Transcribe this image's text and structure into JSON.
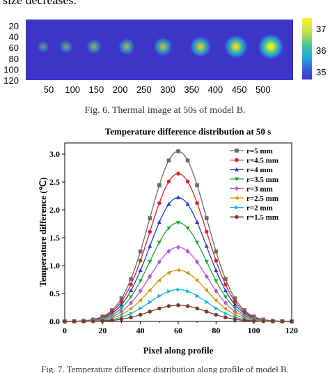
{
  "top_text": "size decreases.",
  "fig6": {
    "caption": "Fig. 6.   Thermal image at 50s of model B.",
    "y_ticks": [
      "20",
      "40",
      "60",
      "80",
      "100",
      "120"
    ],
    "x_ticks": [
      "50",
      "100",
      "150",
      "200",
      "250",
      "300",
      "350",
      "400",
      "450",
      "500"
    ],
    "colorbar_ticks": [
      "37",
      "36",
      "35"
    ],
    "colors": {
      "background": "#3c35c8",
      "hot": "#fff12a"
    },
    "spots": [
      {
        "x": 62,
        "level": 0.12
      },
      {
        "x": 95,
        "level": 0.22
      },
      {
        "x": 135,
        "level": 0.32
      },
      {
        "x": 182,
        "level": 0.42
      },
      {
        "x": 234,
        "level": 0.55
      },
      {
        "x": 288,
        "level": 0.7
      },
      {
        "x": 339,
        "level": 0.85
      },
      {
        "x": 389,
        "level": 1.0
      }
    ]
  },
  "chart_data": {
    "type": "line",
    "title": "Temperature difference distribution at 50 s",
    "xlabel": "Pixel along profile",
    "ylabel": "Temperature difference (℃)",
    "xlim": [
      0,
      120
    ],
    "ylim": [
      0,
      3.2
    ],
    "x_ticks": [
      0,
      20,
      40,
      60,
      80,
      100,
      120
    ],
    "y_ticks": [
      0.0,
      0.5,
      1.0,
      1.5,
      2.0,
      2.5,
      3.0
    ],
    "x": [
      0,
      5,
      10,
      15,
      20,
      25,
      30,
      35,
      40,
      45,
      50,
      55,
      60,
      65,
      70,
      75,
      80,
      85,
      90,
      95,
      100,
      105,
      110,
      115,
      120
    ],
    "series": [
      {
        "name": "r=5 mm",
        "peak": 3.05,
        "color": "#6b6b6b",
        "marker": "square"
      },
      {
        "name": "r=4.5 mm",
        "peak": 2.65,
        "color": "#e8202a",
        "marker": "circle"
      },
      {
        "name": "r=4 mm",
        "peak": 2.22,
        "color": "#1f3fd6",
        "marker": "triangle-up"
      },
      {
        "name": "r=3.5 mm",
        "peak": 1.77,
        "color": "#1faa35",
        "marker": "triangle-down"
      },
      {
        "name": "r=3 mm",
        "peak": 1.33,
        "color": "#b55bd6",
        "marker": "diamond"
      },
      {
        "name": "r=2.5 mm",
        "peak": 0.92,
        "color": "#c89a00",
        "marker": "triangle-left"
      },
      {
        "name": "r=2 mm",
        "peak": 0.57,
        "color": "#16b8d8",
        "marker": "triangle-right"
      },
      {
        "name": "r=1.5 mm",
        "peak": 0.29,
        "color": "#7a3b2e",
        "marker": "circle"
      }
    ],
    "legend_position": "top-right",
    "grid": false
  },
  "fig7": {
    "caption": "Fig. 7.   Temperature difference distribution along profile of model B."
  }
}
